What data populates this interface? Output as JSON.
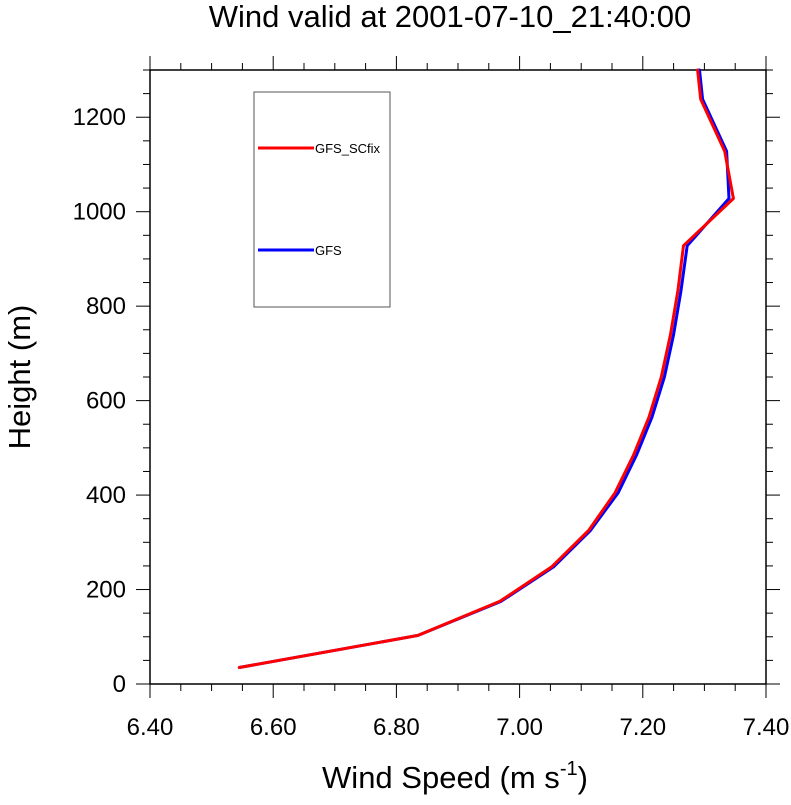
{
  "chart_data": {
    "type": "line",
    "title": "Wind valid at 2001-07-10_21:40:00",
    "xlabel": "Wind Speed (m s",
    "xlabel_sup": "-1",
    "xlabel_close": ")",
    "ylabel": "Height (m)",
    "xlim": [
      6.4,
      7.4
    ],
    "ylim": [
      0,
      1300
    ],
    "x_ticks": [
      {
        "value": 6.4,
        "label": "6.40"
      },
      {
        "value": 6.6,
        "label": "6.60"
      },
      {
        "value": 6.8,
        "label": "6.80"
      },
      {
        "value": 7.0,
        "label": "7.00"
      },
      {
        "value": 7.2,
        "label": "7.20"
      },
      {
        "value": 7.4,
        "label": "7.40"
      }
    ],
    "y_ticks": [
      {
        "value": 0,
        "label": "0"
      },
      {
        "value": 200,
        "label": "200"
      },
      {
        "value": 400,
        "label": "400"
      },
      {
        "value": 600,
        "label": "600"
      },
      {
        "value": 800,
        "label": "800"
      },
      {
        "value": 1000,
        "label": "1000"
      },
      {
        "value": 1200,
        "label": "1200"
      }
    ],
    "grid": false,
    "legend_position": "top-left inside",
    "series": [
      {
        "name": "GFS",
        "color": "#0000ff",
        "points": [
          {
            "x": 6.545,
            "y": 35
          },
          {
            "x": 6.835,
            "y": 103
          },
          {
            "x": 6.97,
            "y": 175
          },
          {
            "x": 7.055,
            "y": 248
          },
          {
            "x": 7.115,
            "y": 325
          },
          {
            "x": 7.16,
            "y": 405
          },
          {
            "x": 7.19,
            "y": 485
          },
          {
            "x": 7.215,
            "y": 565
          },
          {
            "x": 7.235,
            "y": 650
          },
          {
            "x": 7.25,
            "y": 740
          },
          {
            "x": 7.262,
            "y": 833
          },
          {
            "x": 7.272,
            "y": 928
          },
          {
            "x": 7.34,
            "y": 1028
          },
          {
            "x": 7.336,
            "y": 1128
          },
          {
            "x": 7.297,
            "y": 1238
          },
          {
            "x": 7.292,
            "y": 1300
          }
        ]
      },
      {
        "name": "GFS_SCfix",
        "color": "#ff0000",
        "points": [
          {
            "x": 6.545,
            "y": 35
          },
          {
            "x": 6.835,
            "y": 103
          },
          {
            "x": 6.968,
            "y": 175
          },
          {
            "x": 7.052,
            "y": 248
          },
          {
            "x": 7.112,
            "y": 325
          },
          {
            "x": 7.155,
            "y": 405
          },
          {
            "x": 7.185,
            "y": 485
          },
          {
            "x": 7.21,
            "y": 565
          },
          {
            "x": 7.23,
            "y": 650
          },
          {
            "x": 7.245,
            "y": 740
          },
          {
            "x": 7.257,
            "y": 833
          },
          {
            "x": 7.266,
            "y": 928
          },
          {
            "x": 7.347,
            "y": 1028
          },
          {
            "x": 7.333,
            "y": 1128
          },
          {
            "x": 7.294,
            "y": 1238
          },
          {
            "x": 7.289,
            "y": 1300
          }
        ]
      }
    ],
    "legend_entries": [
      {
        "name": "GFS_SCfix",
        "color": "#ff0000"
      },
      {
        "name": "GFS",
        "color": "#0000ff"
      }
    ]
  }
}
